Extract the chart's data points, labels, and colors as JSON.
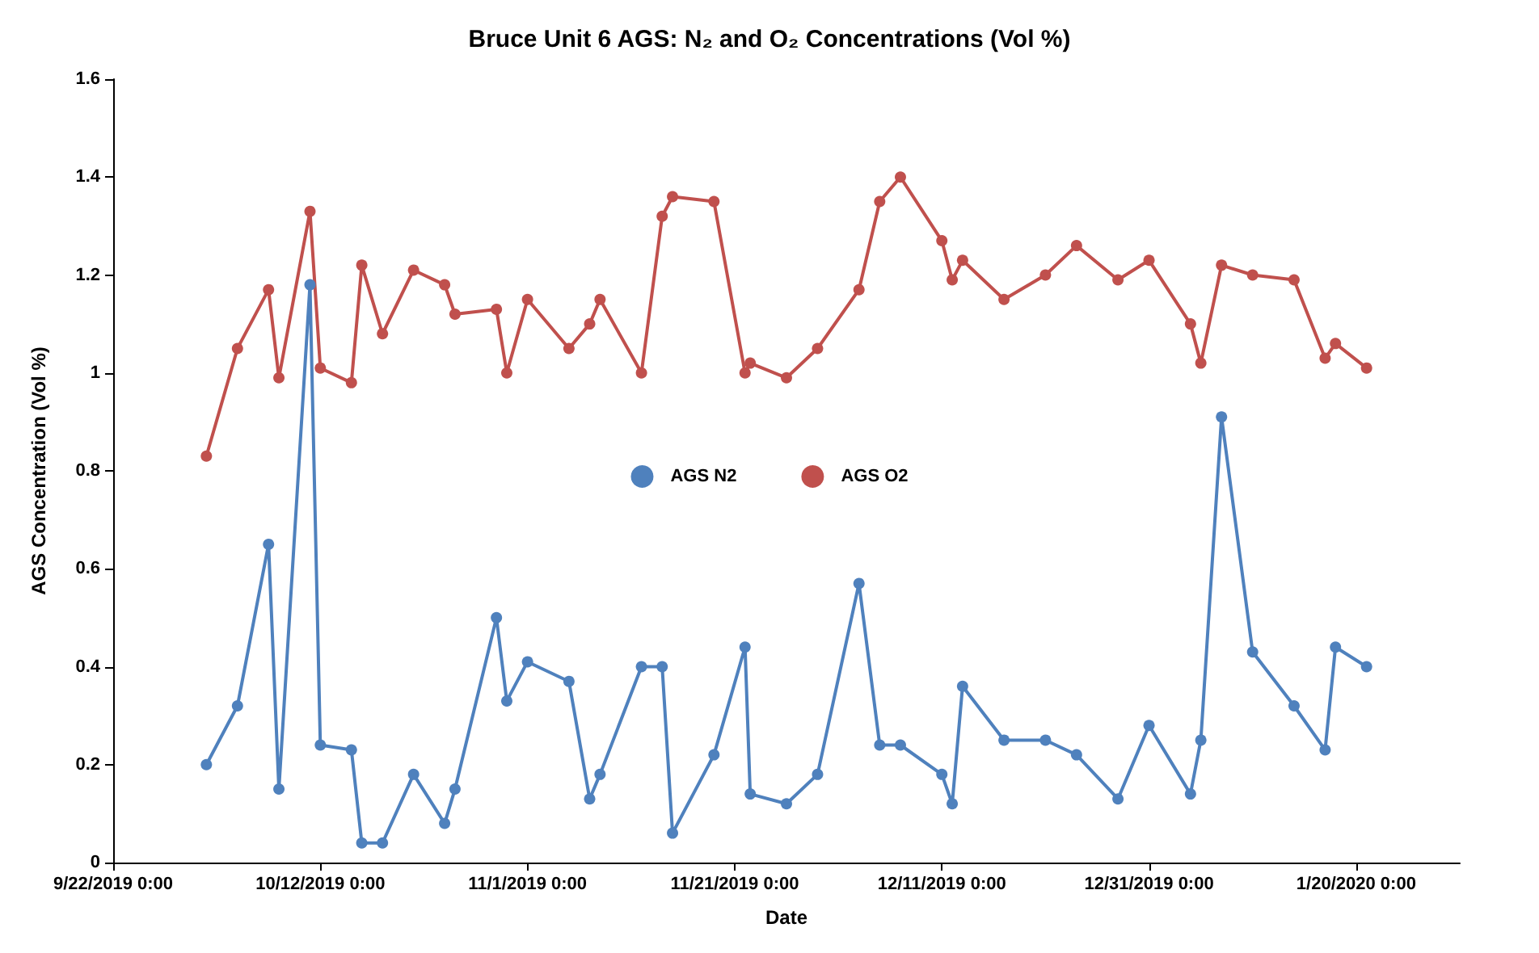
{
  "chart_data": {
    "type": "line",
    "title": "Bruce Unit 6 AGS: N₂ and O₂ Concentrations (Vol %)",
    "xlabel": "Date",
    "ylabel": "AGS Concentration (Vol %)",
    "x": [
      "2019-10-01",
      "2019-10-04",
      "2019-10-07",
      "2019-10-08",
      "2019-10-11",
      "2019-10-12",
      "2019-10-15",
      "2019-10-16",
      "2019-10-18",
      "2019-10-21",
      "2019-10-24",
      "2019-10-25",
      "2019-10-29",
      "2019-10-30",
      "2019-11-01",
      "2019-11-05",
      "2019-11-07",
      "2019-11-08",
      "2019-11-12",
      "2019-11-14",
      "2019-11-15",
      "2019-11-19",
      "2019-11-22",
      "2019-11-22T12:00",
      "2019-11-26",
      "2019-11-29",
      "2019-12-03",
      "2019-12-05",
      "2019-12-07",
      "2019-12-11",
      "2019-12-12",
      "2019-12-13",
      "2019-12-17",
      "2019-12-21",
      "2019-12-24",
      "2019-12-28",
      "2019-12-31",
      "2020-01-04",
      "2020-01-05",
      "2020-01-07",
      "2020-01-10",
      "2020-01-14",
      "2020-01-17",
      "2020-01-18",
      "2020-01-21"
    ],
    "series": [
      {
        "name": "AGS N2",
        "color": "#4f81bd",
        "values": [
          0.2,
          0.32,
          0.65,
          0.15,
          1.18,
          0.24,
          0.23,
          0.04,
          0.04,
          0.18,
          0.08,
          0.15,
          0.5,
          0.33,
          0.41,
          0.37,
          0.13,
          0.18,
          0.4,
          0.4,
          0.06,
          0.22,
          0.44,
          0.14,
          0.12,
          0.18,
          0.57,
          0.24,
          0.24,
          0.18,
          0.12,
          0.36,
          0.25,
          0.25,
          0.22,
          0.13,
          0.28,
          0.14,
          0.25,
          0.91,
          0.43,
          0.32,
          0.23,
          0.44,
          0.4
        ]
      },
      {
        "name": "AGS O2",
        "color": "#c0504d",
        "values": [
          0.83,
          1.05,
          1.17,
          0.99,
          1.33,
          1.01,
          0.98,
          1.22,
          1.08,
          1.21,
          1.18,
          1.12,
          1.13,
          1.0,
          1.15,
          1.05,
          1.1,
          1.15,
          1.0,
          1.32,
          1.36,
          1.35,
          1.0,
          1.02,
          0.99,
          1.05,
          1.17,
          1.35,
          1.4,
          1.27,
          1.19,
          1.23,
          1.15,
          1.2,
          1.26,
          1.19,
          1.23,
          1.1,
          1.02,
          1.22,
          1.2,
          1.19,
          1.03,
          1.06,
          1.01
        ]
      }
    ],
    "xlim": [
      "2019-09-22",
      "2020-01-30"
    ],
    "xticks": [
      {
        "value": "2019-09-22",
        "label": "9/22/2019 0:00"
      },
      {
        "value": "2019-10-12",
        "label": "10/12/2019 0:00"
      },
      {
        "value": "2019-11-01",
        "label": "11/1/2019 0:00"
      },
      {
        "value": "2019-11-21",
        "label": "11/21/2019 0:00"
      },
      {
        "value": "2019-12-11",
        "label": "12/11/2019 0:00"
      },
      {
        "value": "2019-12-31",
        "label": "12/31/2019 0:00"
      },
      {
        "value": "2020-01-20",
        "label": "1/20/2020 0:00"
      }
    ],
    "ylim": [
      0,
      1.6
    ],
    "yticks": [
      0,
      0.2,
      0.4,
      0.6,
      0.8,
      1,
      1.2,
      1.4,
      1.6
    ],
    "grid": false,
    "legend": "center",
    "marker": "circle",
    "line_style": "solid"
  }
}
